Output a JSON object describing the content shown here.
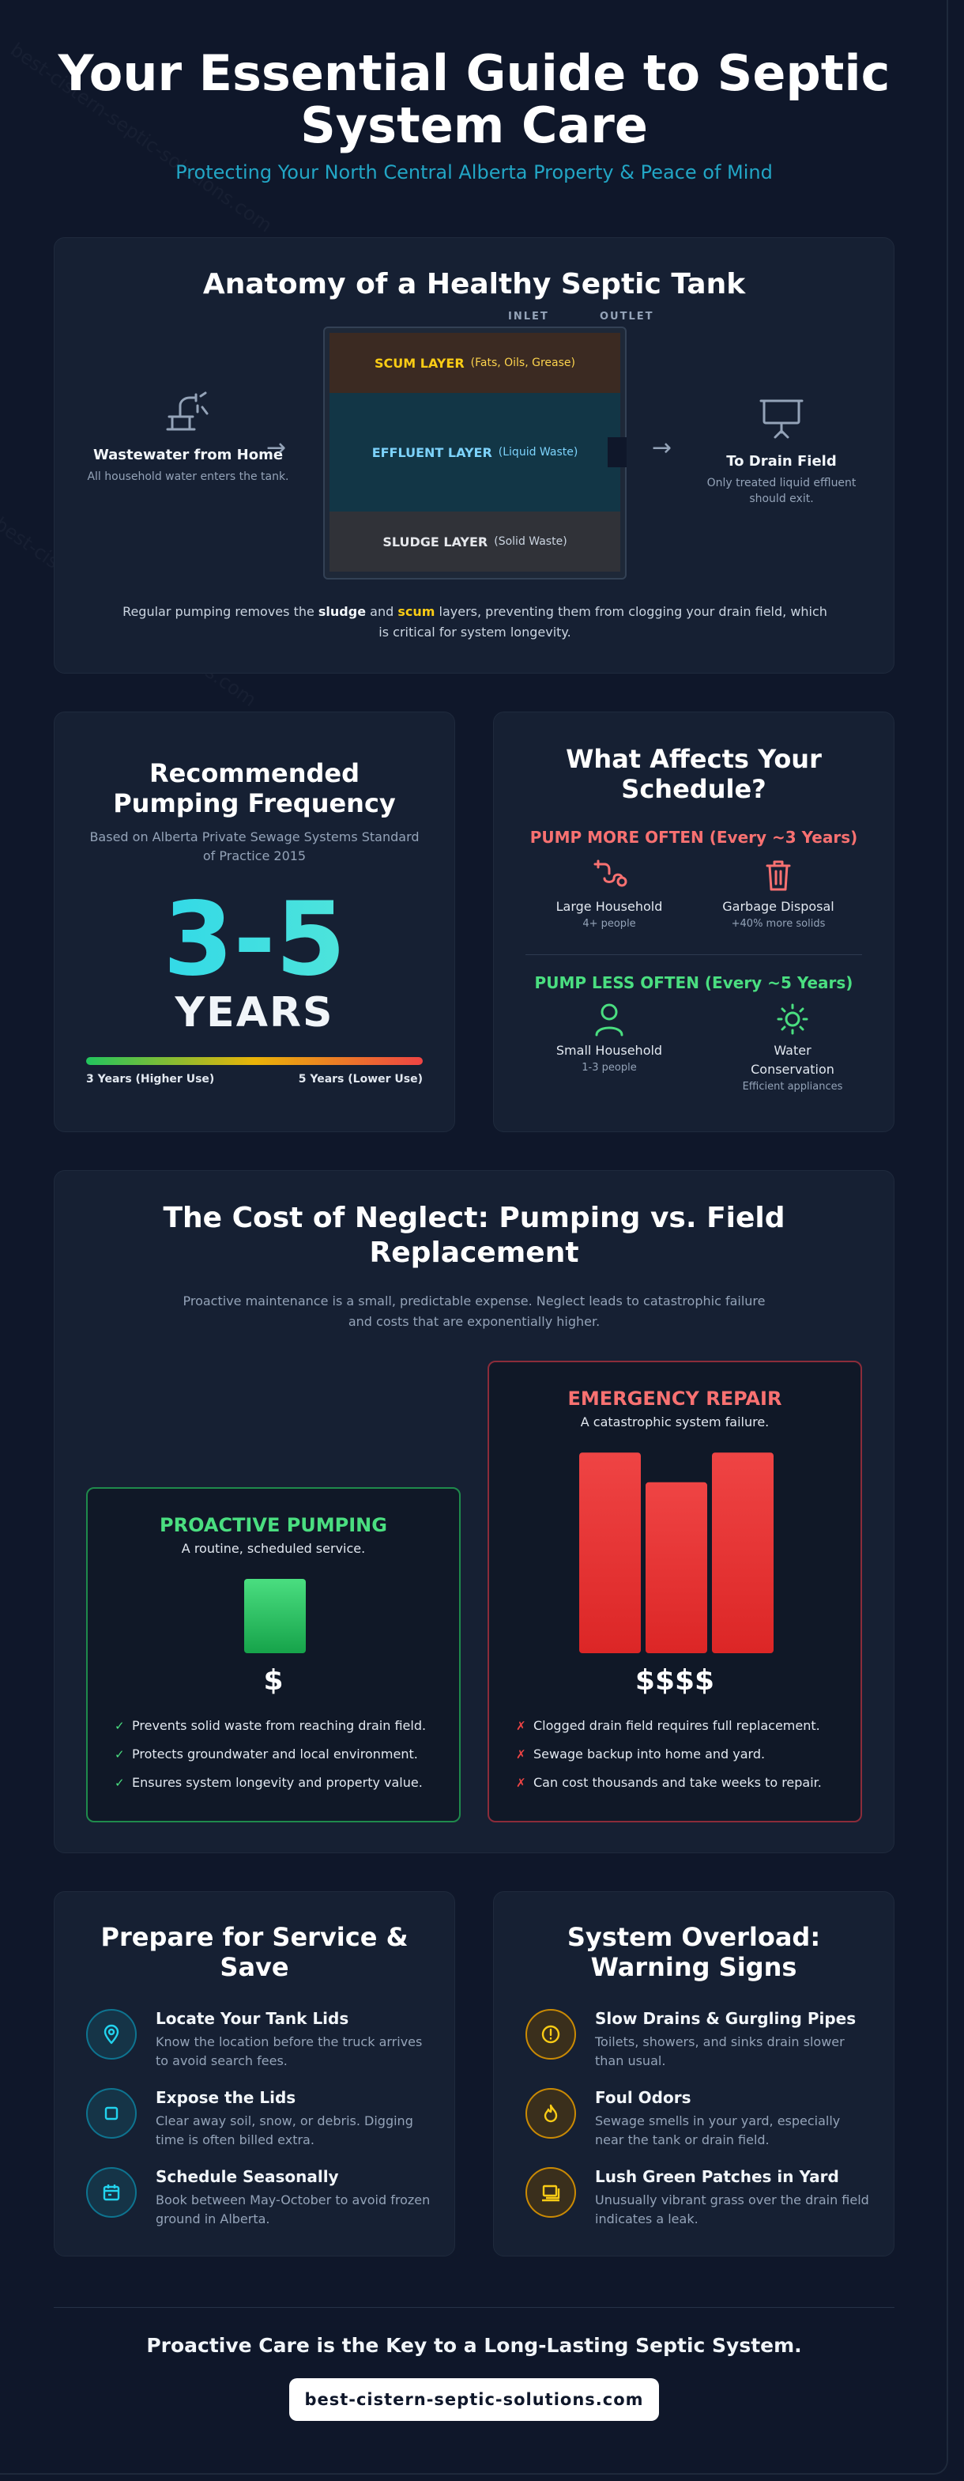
{
  "header": {
    "title": "Your Essential Guide to Septic System Care",
    "subtitle": "Protecting Your North Central Alberta Property & Peace of Mind"
  },
  "watermark": "best-cistern-septic-solutions.com",
  "anatomy": {
    "title": "Anatomy of a Healthy Septic Tank",
    "inlet_label": "INLET",
    "outlet_label": "OUTLET",
    "left": {
      "label": "Wastewater from Home",
      "description": "All household water enters the tank.",
      "icon": "faucet-icon"
    },
    "right": {
      "label": "To Drain Field",
      "description": "Only treated liquid effluent should exit.",
      "icon": "drain-field-icon"
    },
    "layers": [
      {
        "name": "SCUM LAYER",
        "detail": "(Fats, Oils, Grease)"
      },
      {
        "name": "EFFLUENT LAYER",
        "detail": "(Liquid Waste)"
      },
      {
        "name": "SLUDGE LAYER",
        "detail": "(Solid Waste)"
      }
    ],
    "note": {
      "part1": "Regular pumping removes the ",
      "sludge": "sludge",
      "part2": " and ",
      "scum": "scum",
      "part3": " layers, preventing them from clogging your drain field, which is critical for system longevity."
    }
  },
  "frequency": {
    "title": "Recommended Pumping Frequency",
    "subtitle": "Based on Alberta Private Sewage Systems Standard of Practice 2015",
    "value": "3-5",
    "unit": "YEARS",
    "left_label": "3 Years (Higher Use)",
    "right_label": "5 Years (Lower Use)"
  },
  "affects": {
    "title": "What Affects Your Schedule?",
    "more_heading": "PUMP MORE OFTEN (Every ~3 Years)",
    "less_heading": "PUMP LESS OFTEN (Every ~5 Years)",
    "more_items": [
      {
        "name": "Large Household",
        "detail": "4+ people"
      },
      {
        "name": "Garbage Disposal",
        "detail": "+40% more solids"
      }
    ],
    "less_items": [
      {
        "name": "Small Household",
        "detail": "1-3 people"
      },
      {
        "name": "Water Conservation",
        "detail": "Efficient appliances"
      }
    ]
  },
  "cost": {
    "title": "The Cost of Neglect: Pumping vs. Field Replacement",
    "subtitle": "Proactive maintenance is a small, predictable expense. Neglect leads to catastrophic failure and costs that are exponentially higher.",
    "proactive": {
      "heading": "PROACTIVE PUMPING",
      "subheading": "A routine, scheduled service.",
      "price": "$",
      "bars": [
        1
      ],
      "bullets": [
        "Prevents solid waste from reaching drain field.",
        "Protects groundwater and local environment.",
        "Ensures system longevity and property value."
      ]
    },
    "emergency": {
      "heading": "EMERGENCY REPAIR",
      "subheading": "A catastrophic system failure.",
      "price": "$$$$",
      "bars": [
        2.7,
        2.3,
        2.7
      ],
      "bullets": [
        "Clogged drain field requires full replacement.",
        "Sewage backup into home and yard.",
        "Can cost thousands and take weeks to repair."
      ]
    },
    "colors": {
      "green_top": "#4ade80",
      "green_bottom": "#16a34a",
      "red_top": "#ef4444",
      "red_bottom": "#dc2626"
    }
  },
  "prepare": {
    "title": "Prepare for Service & Save",
    "steps": [
      {
        "title": "Locate Your Tank Lids",
        "description": "Know the location before the truck arrives to avoid search fees.",
        "icon": "map-pin-icon"
      },
      {
        "title": "Expose the Lids",
        "description": "Clear away soil, snow, or debris. Digging time is often billed extra.",
        "icon": "square-icon"
      },
      {
        "title": "Schedule Seasonally",
        "description": "Book between May-October to avoid frozen ground in Alberta.",
        "icon": "calendar-icon"
      }
    ]
  },
  "warning": {
    "title": "System Overload: Warning Signs",
    "signs": [
      {
        "title": "Slow Drains & Gurgling Pipes",
        "description": "Toilets, showers, and sinks drain slower than usual.",
        "icon": "alert-circle-icon"
      },
      {
        "title": "Foul Odors",
        "description": "Sewage smells in your yard, especially near the tank or drain field.",
        "icon": "flame-icon"
      },
      {
        "title": "Lush Green Patches in Yard",
        "description": "Unusually vibrant grass over the drain field indicates a leak.",
        "icon": "grass-icon"
      }
    ]
  },
  "footer": {
    "tagline": "Proactive Care is the Key to a Long-Lasting Septic System.",
    "link": "best-cistern-septic-solutions.com"
  }
}
